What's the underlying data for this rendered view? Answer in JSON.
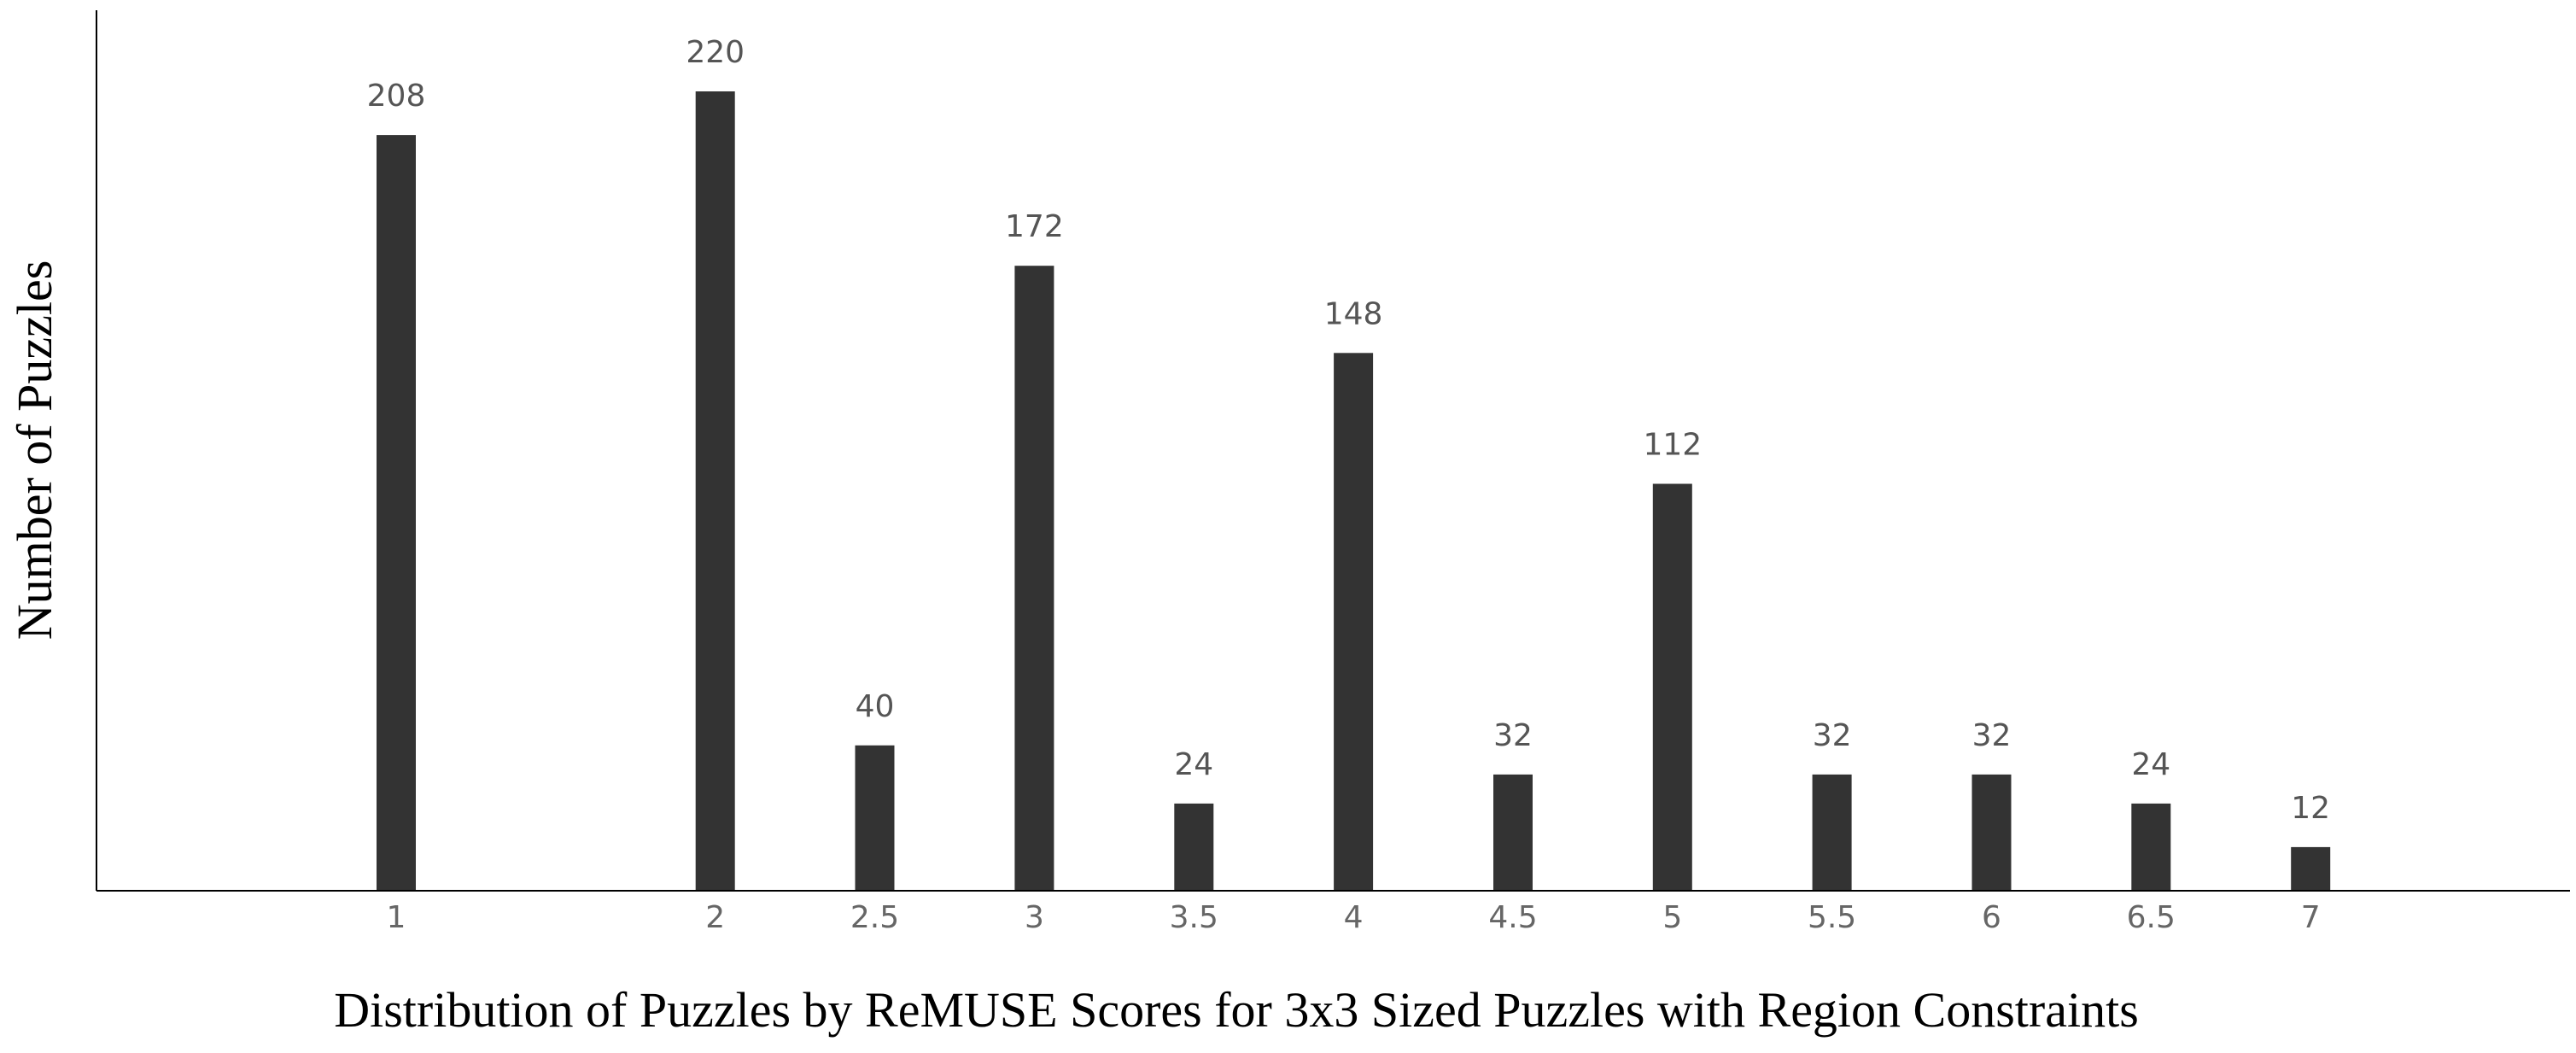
{
  "chart_data": {
    "type": "bar",
    "categories": [
      "1",
      "2",
      "2.5",
      "3",
      "3.5",
      "4",
      "4.5",
      "5",
      "5.5",
      "6",
      "6.5",
      "7"
    ],
    "x": [
      1,
      2,
      2.5,
      3,
      3.5,
      4,
      4.5,
      5,
      5.5,
      6,
      6.5,
      7
    ],
    "values": [
      208,
      220,
      40,
      172,
      24,
      148,
      32,
      112,
      32,
      32,
      24,
      12
    ],
    "data_labels": [
      "208",
      "220",
      "40",
      "172",
      "24",
      "148",
      "32",
      "112",
      "32",
      "32",
      "24",
      "12"
    ],
    "xlabel": "Distribution of Puzzles by ReMUSE Scores for 3x3 Sized Puzzles with Region Constraints",
    "ylabel": "Number of Puzzles",
    "ylim": [
      0,
      220
    ],
    "grid": false,
    "colors": {
      "bar": "#333333",
      "value_label": "#555555",
      "tick_label": "#666666"
    }
  }
}
